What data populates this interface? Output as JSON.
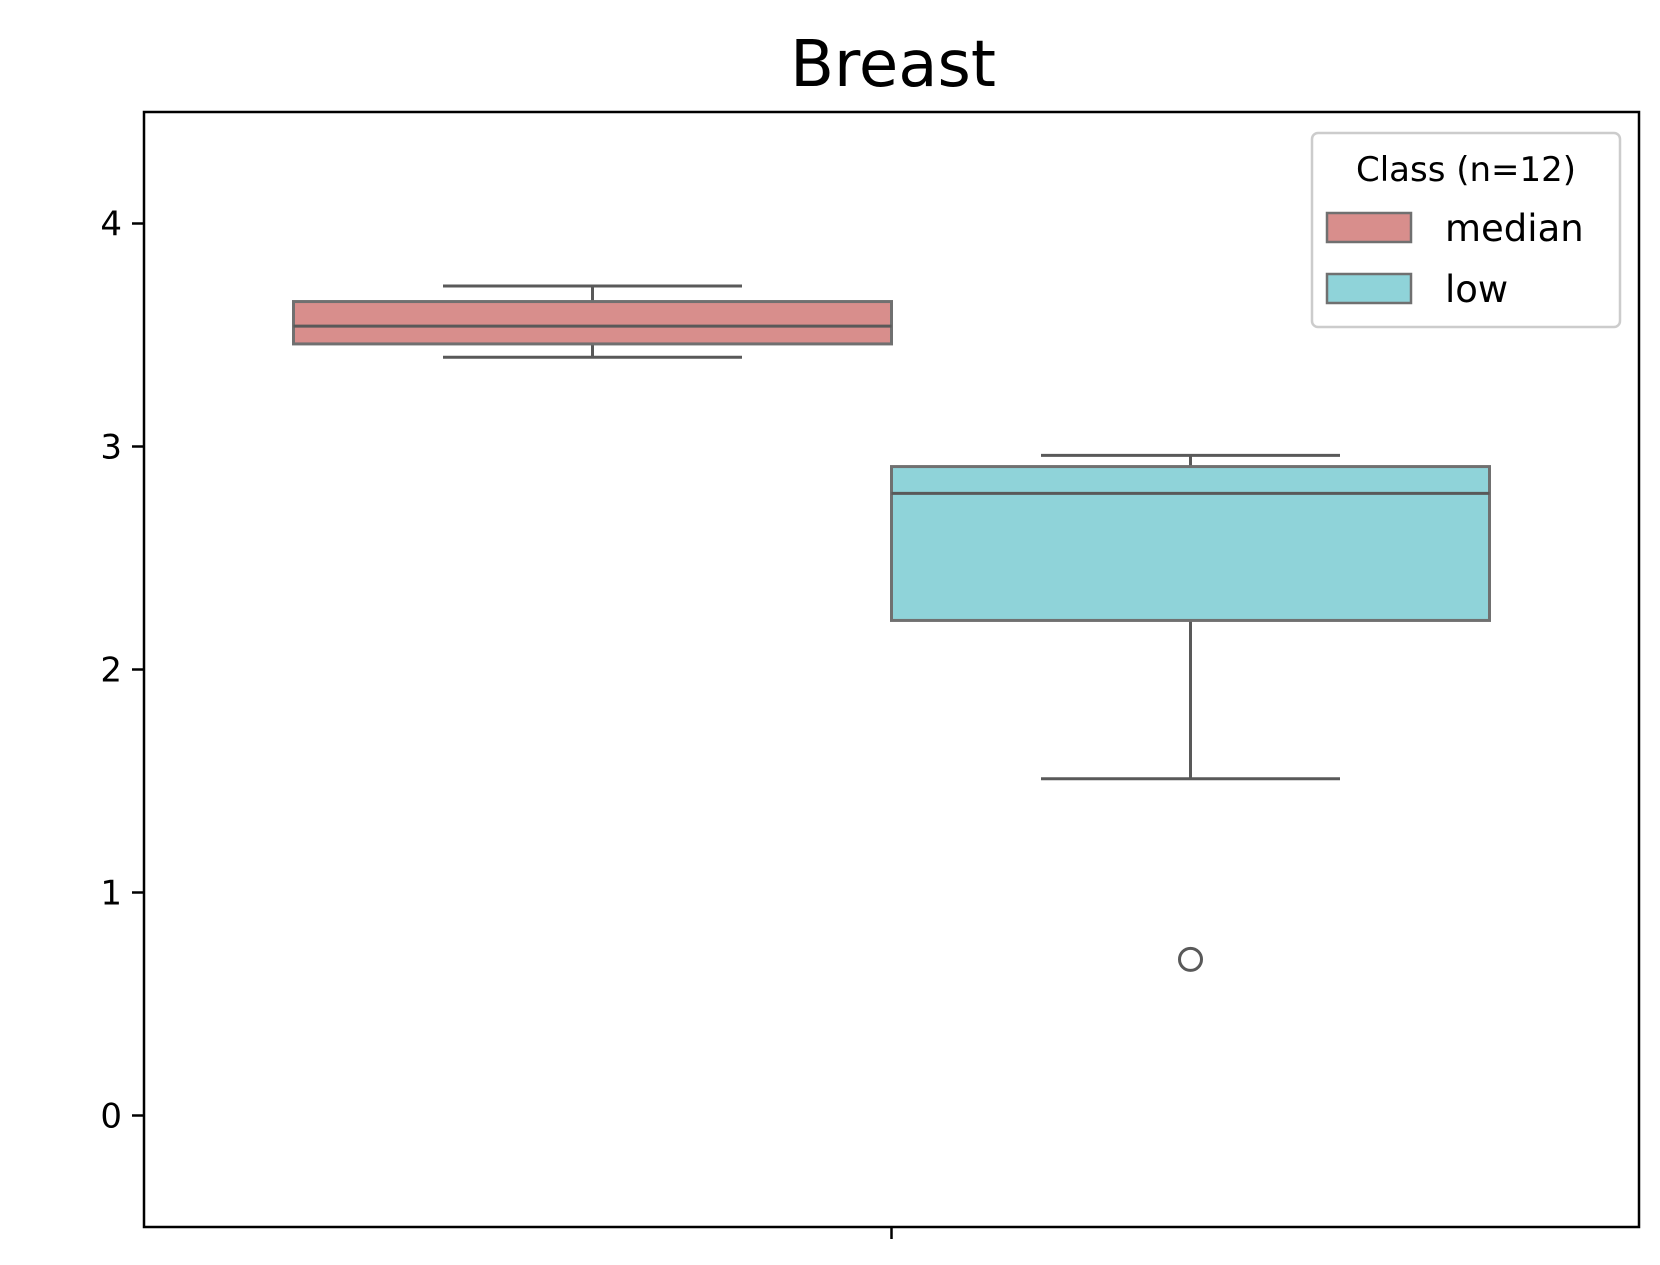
{
  "chart_data": {
    "type": "boxplot",
    "title": "Breast",
    "xlabel": "",
    "ylabel": "",
    "ylim": [
      -0.5,
      4.5
    ],
    "yticks": [
      0,
      1,
      2,
      3,
      4
    ],
    "grid": false,
    "legend": {
      "title": "Class (n=12)",
      "placement": "top-right",
      "entries": [
        "median",
        "low"
      ]
    },
    "series": [
      {
        "name": "median",
        "color": "#d88e8c",
        "whisker_low": 3.4,
        "q1": 3.46,
        "median": 3.54,
        "q3": 3.65,
        "whisker_high": 3.72,
        "outliers": []
      },
      {
        "name": "low",
        "color": "#8fd3d9",
        "whisker_low": 1.51,
        "q1": 2.22,
        "median": 2.79,
        "q3": 2.91,
        "whisker_high": 2.96,
        "outliers": [
          0.7
        ]
      }
    ]
  }
}
